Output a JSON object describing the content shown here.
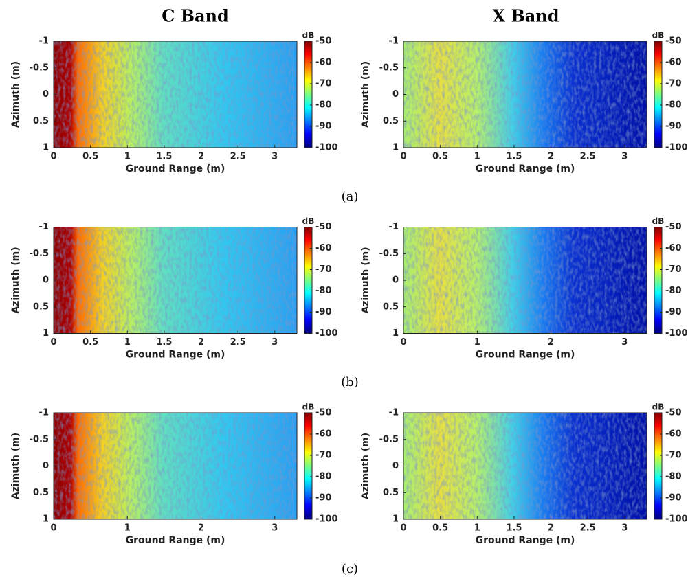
{
  "column_titles": [
    "C Band",
    "X Band"
  ],
  "captions": [
    "(a)",
    "(b)",
    "(c)"
  ],
  "chart_data": [
    {
      "type": "heatmap",
      "band": "C",
      "xlabel": "Ground Range (m)",
      "ylabel": "Azimuth (m)",
      "xlim": [
        0,
        3.3
      ],
      "ylim": [
        -1,
        1
      ],
      "y_reversed": true,
      "xticks": [
        0,
        0.5,
        1,
        1.5,
        2,
        2.5,
        3
      ],
      "yticks": [
        -1,
        -0.5,
        0,
        0.5,
        1
      ],
      "colorbar_label": "dB",
      "clim": [
        -100,
        -50
      ],
      "cticks": [
        -50,
        -60,
        -70,
        -80,
        -90,
        -100
      ],
      "colormap": "jet"
    },
    {
      "type": "heatmap",
      "band": "X",
      "xlabel": "Ground Range (m)",
      "ylabel": "Azimuth (m)",
      "xlim": [
        0,
        3.3
      ],
      "ylim": [
        -1,
        1
      ],
      "y_reversed": true,
      "xticks": [
        0,
        0.5,
        1,
        1.5,
        2,
        2.5,
        3
      ],
      "yticks": [
        -1,
        -0.5,
        0,
        0.5,
        1
      ],
      "colorbar_label": "dB",
      "clim": [
        -100,
        -50
      ],
      "cticks": [
        -50,
        -60,
        -70,
        -80,
        -90,
        -100
      ],
      "colormap": "jet"
    },
    {
      "type": "heatmap",
      "band": "C",
      "xlabel": "Ground Range (m)",
      "ylabel": "Azimuth (m)",
      "xlim": [
        0,
        3.3
      ],
      "ylim": [
        -1,
        1
      ],
      "y_reversed": true,
      "xticks": [
        0,
        0.5,
        1,
        1.5,
        2,
        2.5,
        3
      ],
      "yticks": [
        -1,
        -0.5,
        0,
        0.5,
        1
      ],
      "colorbar_label": "dB",
      "clim": [
        -100,
        -50
      ],
      "cticks": [
        -50,
        -60,
        -70,
        -80,
        -90,
        -100
      ],
      "colormap": "jet"
    },
    {
      "type": "heatmap",
      "band": "X",
      "xlabel": "Ground Range (m)",
      "ylabel": "Azimuth (m)",
      "xlim": [
        0,
        3.3
      ],
      "ylim": [
        -1,
        1
      ],
      "y_reversed": true,
      "xticks": [
        0,
        1,
        2,
        3
      ],
      "yticks": [
        -1,
        -0.5,
        0,
        0.5,
        1
      ],
      "colorbar_label": "dB",
      "clim": [
        -100,
        -50
      ],
      "cticks": [
        -50,
        -60,
        -70,
        -80,
        -90,
        -100
      ],
      "colormap": "jet"
    },
    {
      "type": "heatmap",
      "band": "C",
      "xlabel": "Ground Range (m)",
      "ylabel": "Azimuth (m)",
      "xlim": [
        0,
        3.3
      ],
      "ylim": [
        -1,
        1
      ],
      "y_reversed": true,
      "xticks": [
        0,
        1,
        2,
        3
      ],
      "yticks": [
        -1,
        -0.5,
        0,
        0.5,
        1
      ],
      "colorbar_label": "dB",
      "clim": [
        -100,
        -50
      ],
      "cticks": [
        -50,
        -60,
        -70,
        -80,
        -90,
        -100
      ],
      "colormap": "jet"
    },
    {
      "type": "heatmap",
      "band": "X",
      "xlabel": "Ground Range (m)",
      "ylabel": "Azimuth (m)",
      "xlim": [
        0,
        3.3
      ],
      "ylim": [
        -1,
        1
      ],
      "y_reversed": true,
      "xticks": [
        0,
        0.5,
        1,
        1.5,
        2,
        2.5,
        3
      ],
      "yticks": [
        -1,
        -0.5,
        0,
        0.5,
        1
      ],
      "colorbar_label": "dB",
      "clim": [
        -100,
        -50
      ],
      "cticks": [
        -50,
        -60,
        -70,
        -80,
        -90,
        -100
      ],
      "colormap": "jet"
    }
  ]
}
